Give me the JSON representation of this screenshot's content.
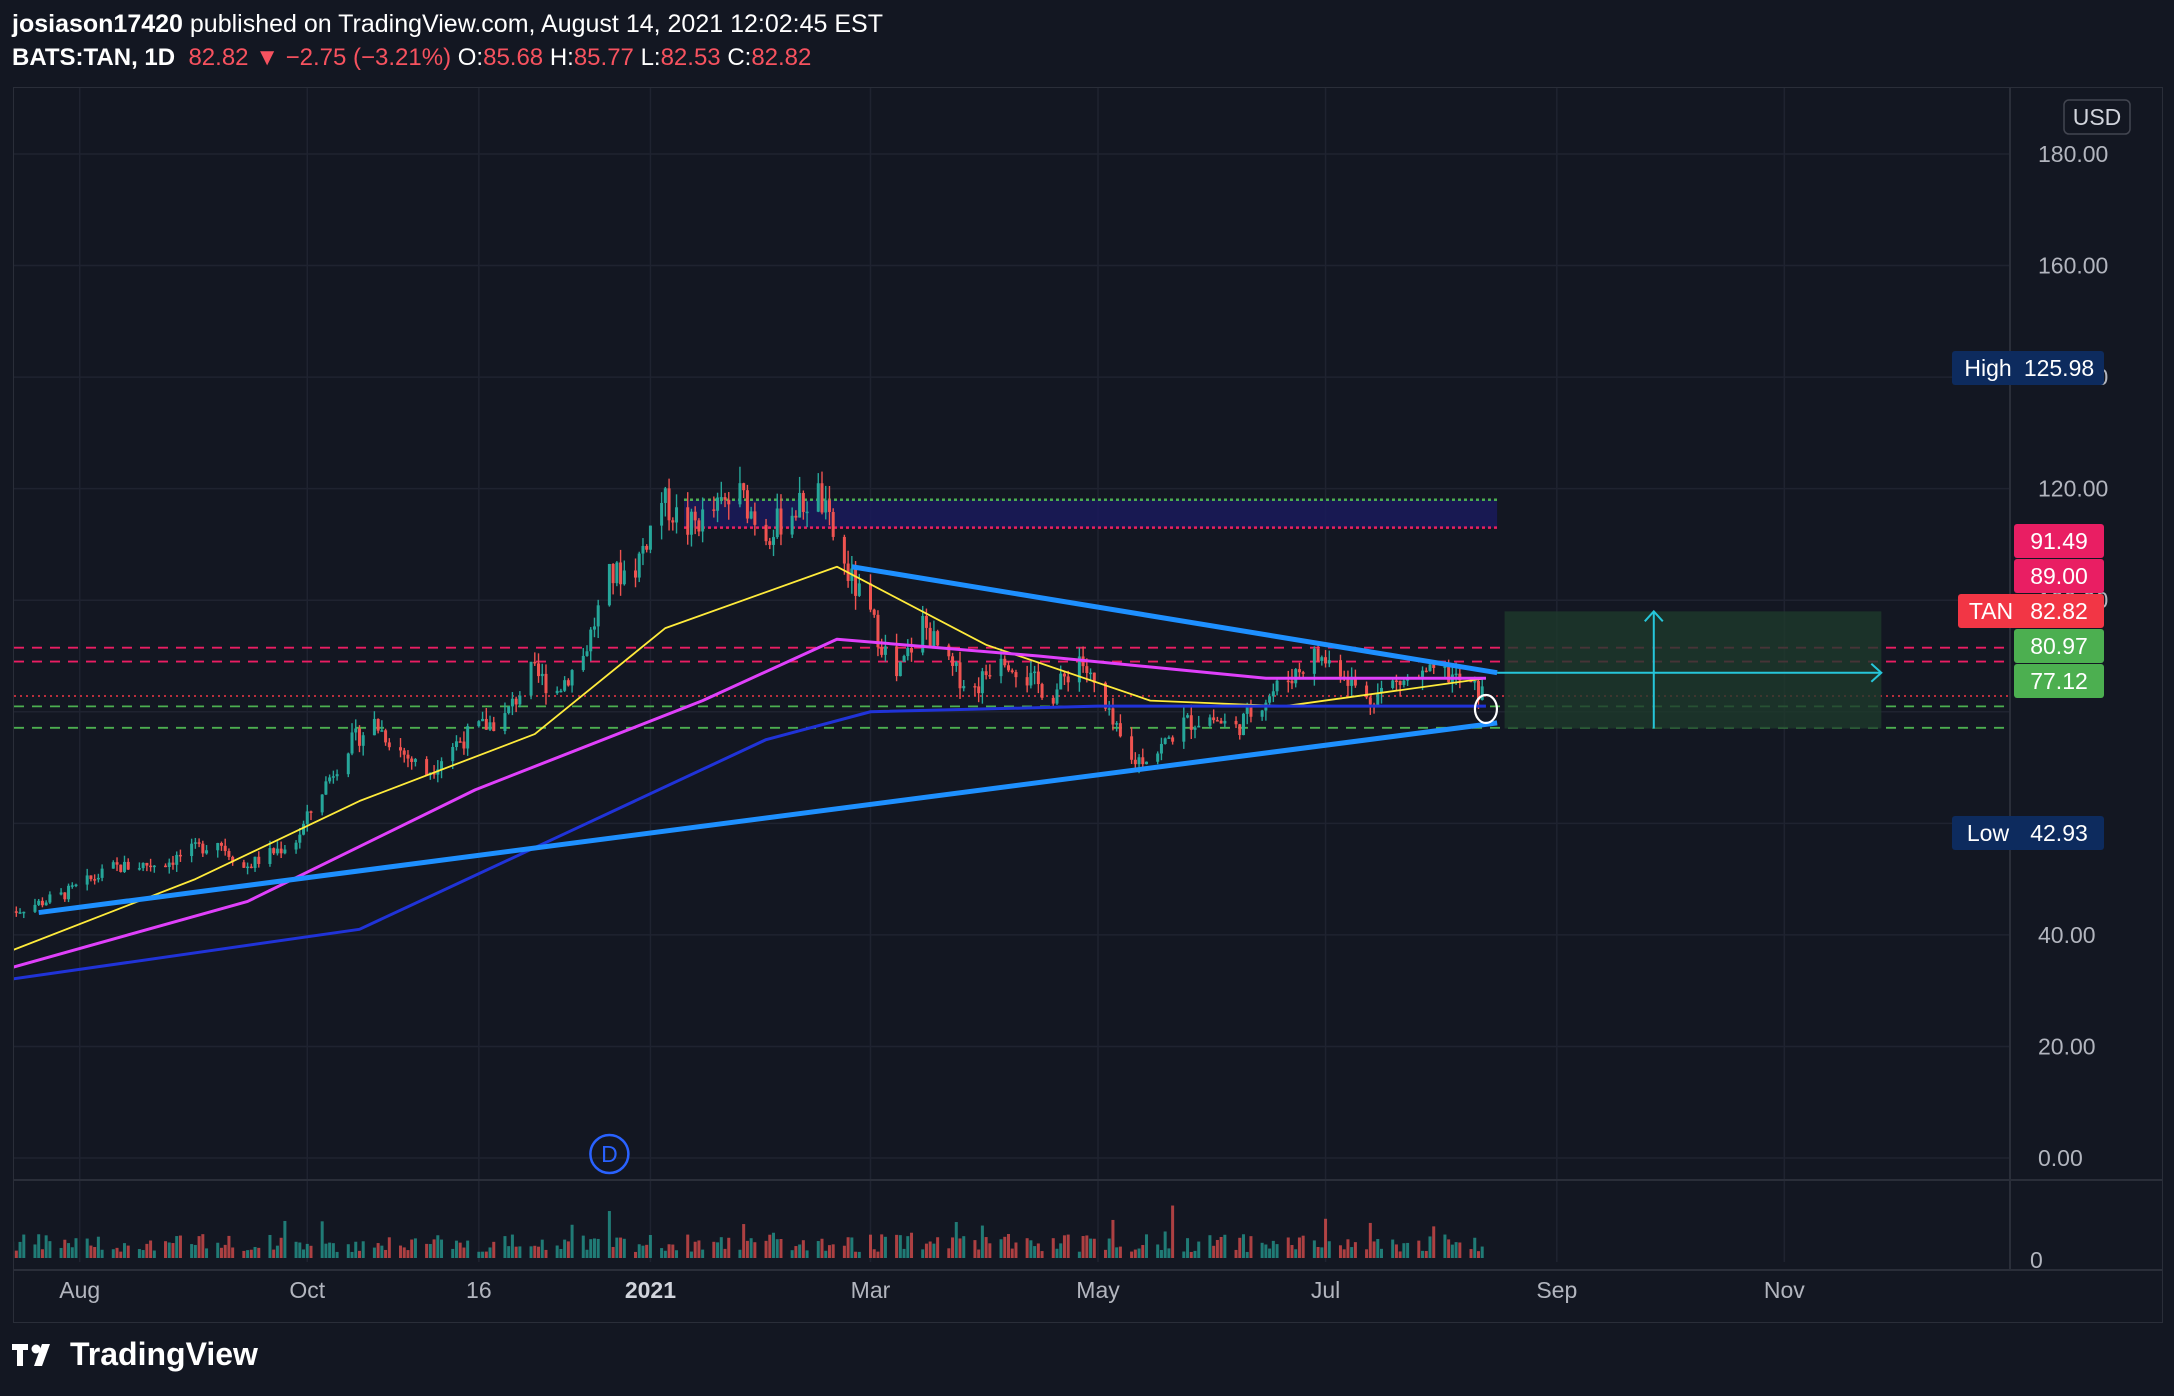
{
  "header": {
    "author": "josiason17420",
    "published_text": "published on TradingView.com, August 14, 2021 12:02:45 EST",
    "symbol": "BATS:TAN, 1D",
    "last": "82.82",
    "change": "−2.75 (−3.21%)",
    "o_label": "O:",
    "o_value": "85.68",
    "h_label": "H:",
    "h_value": "85.77",
    "l_label": "L:",
    "l_value": "82.53",
    "c_label": "C:",
    "c_value": "82.82"
  },
  "footer": {
    "brand": "TradingView"
  },
  "chart_data": {
    "type": "candlestick",
    "symbol": "BATS:TAN",
    "interval": "1D",
    "currency": "USD",
    "y_ticks": [
      "180.00",
      "160.00",
      "140.00",
      "120.00",
      "100.00",
      "40.00",
      "20.00",
      "0.00"
    ],
    "ylim": [
      -8,
      190
    ],
    "x_ticks": [
      "Aug",
      "Oct",
      "16",
      "2021",
      "Mar",
      "May",
      "Jul",
      "Sep",
      "Nov"
    ],
    "volume_ticks": [
      "0"
    ],
    "price_tags": [
      {
        "label": "High",
        "value": "125.98",
        "color": "#0d2b5e"
      },
      {
        "label": "",
        "value": "91.49",
        "color": "#e91e63"
      },
      {
        "label": "",
        "value": "89.00",
        "color": "#e91e63"
      },
      {
        "label": "TAN",
        "value": "82.82",
        "color": "#f23645"
      },
      {
        "label": "",
        "value": "80.97",
        "color": "#4caf50"
      },
      {
        "label": "",
        "value": "77.12",
        "color": "#4caf50"
      },
      {
        "label": "Low",
        "value": "42.93",
        "color": "#0d2b5e"
      }
    ],
    "levels": {
      "dashed_pink": [
        91.49,
        89.0
      ],
      "dashed_green": [
        80.97,
        77.12
      ],
      "last_price": 82.82,
      "resistance_box": [
        113,
        118
      ]
    },
    "trendlines": {
      "lower": [
        {
          "date": "2020-07-21",
          "price": 44
        },
        {
          "date": "2021-08-16",
          "price": 78
        }
      ],
      "upper": [
        {
          "date": "2021-02-24",
          "price": 106
        },
        {
          "date": "2021-08-16",
          "price": 87
        }
      ]
    },
    "projection_box": {
      "top": 98,
      "bottom": 77,
      "arrow_level": 87
    },
    "price_path": [
      {
        "date": "2020-07-13",
        "price": 44
      },
      {
        "date": "2020-07-27",
        "price": 47
      },
      {
        "date": "2020-08-10",
        "price": 52
      },
      {
        "date": "2020-08-24",
        "price": 53
      },
      {
        "date": "2020-09-07",
        "price": 57
      },
      {
        "date": "2020-09-14",
        "price": 52
      },
      {
        "date": "2020-09-28",
        "price": 57
      },
      {
        "date": "2020-10-05",
        "price": 66
      },
      {
        "date": "2020-10-12",
        "price": 74
      },
      {
        "date": "2020-10-19",
        "price": 78
      },
      {
        "date": "2020-10-26",
        "price": 73
      },
      {
        "date": "2020-11-02",
        "price": 69
      },
      {
        "date": "2020-11-09",
        "price": 74
      },
      {
        "date": "2020-11-16",
        "price": 77
      },
      {
        "date": "2020-11-23",
        "price": 79
      },
      {
        "date": "2020-11-30",
        "price": 87
      },
      {
        "date": "2020-12-07",
        "price": 84
      },
      {
        "date": "2020-12-14",
        "price": 90
      },
      {
        "date": "2020-12-21",
        "price": 104
      },
      {
        "date": "2020-12-28",
        "price": 106
      },
      {
        "date": "2021-01-04",
        "price": 118
      },
      {
        "date": "2021-01-11",
        "price": 113
      },
      {
        "date": "2021-01-18",
        "price": 116
      },
      {
        "date": "2021-01-25",
        "price": 119
      },
      {
        "date": "2021-02-01",
        "price": 112
      },
      {
        "date": "2021-02-08",
        "price": 116
      },
      {
        "date": "2021-02-15",
        "price": 119
      },
      {
        "date": "2021-02-22",
        "price": 106
      },
      {
        "date": "2021-03-01",
        "price": 97
      },
      {
        "date": "2021-03-08",
        "price": 86
      },
      {
        "date": "2021-03-15",
        "price": 96
      },
      {
        "date": "2021-03-22",
        "price": 88
      },
      {
        "date": "2021-03-29",
        "price": 84
      },
      {
        "date": "2021-04-05",
        "price": 91
      },
      {
        "date": "2021-04-12",
        "price": 86
      },
      {
        "date": "2021-04-19",
        "price": 83
      },
      {
        "date": "2021-04-26",
        "price": 90
      },
      {
        "date": "2021-05-03",
        "price": 80
      },
      {
        "date": "2021-05-10",
        "price": 71
      },
      {
        "date": "2021-05-17",
        "price": 73
      },
      {
        "date": "2021-05-24",
        "price": 78
      },
      {
        "date": "2021-05-31",
        "price": 79
      },
      {
        "date": "2021-06-07",
        "price": 77
      },
      {
        "date": "2021-06-14",
        "price": 82
      },
      {
        "date": "2021-06-21",
        "price": 86
      },
      {
        "date": "2021-06-28",
        "price": 90
      },
      {
        "date": "2021-07-05",
        "price": 88
      },
      {
        "date": "2021-07-12",
        "price": 82
      },
      {
        "date": "2021-07-19",
        "price": 85
      },
      {
        "date": "2021-07-26",
        "price": 86
      },
      {
        "date": "2021-08-02",
        "price": 87
      },
      {
        "date": "2021-08-13",
        "price": 82.82
      }
    ],
    "moving_averages": [
      {
        "color": "#ffeb3b",
        "points": [
          {
            "date": "2020-07-13",
            "price": 37
          },
          {
            "date": "2020-09-01",
            "price": 50
          },
          {
            "date": "2020-10-15",
            "price": 64
          },
          {
            "date": "2020-12-01",
            "price": 76
          },
          {
            "date": "2021-01-05",
            "price": 95
          },
          {
            "date": "2021-02-20",
            "price": 106
          },
          {
            "date": "2021-04-01",
            "price": 92
          },
          {
            "date": "2021-05-15",
            "price": 82
          },
          {
            "date": "2021-06-20",
            "price": 81
          },
          {
            "date": "2021-08-13",
            "price": 86
          }
        ]
      },
      {
        "color": "#e040fb",
        "points": [
          {
            "date": "2020-07-13",
            "price": 34
          },
          {
            "date": "2020-09-15",
            "price": 46
          },
          {
            "date": "2020-11-15",
            "price": 66
          },
          {
            "date": "2021-01-15",
            "price": 82
          },
          {
            "date": "2021-02-20",
            "price": 93
          },
          {
            "date": "2021-04-15",
            "price": 90
          },
          {
            "date": "2021-06-15",
            "price": 86
          },
          {
            "date": "2021-08-13",
            "price": 86
          }
        ]
      },
      {
        "color": "#2033d8",
        "points": [
          {
            "date": "2020-07-13",
            "price": 32
          },
          {
            "date": "2020-10-15",
            "price": 41
          },
          {
            "date": "2020-12-15",
            "price": 60
          },
          {
            "date": "2021-02-01",
            "price": 75
          },
          {
            "date": "2021-03-01",
            "price": 80
          },
          {
            "date": "2021-05-01",
            "price": 81
          },
          {
            "date": "2021-08-13",
            "price": 81
          }
        ]
      }
    ]
  }
}
